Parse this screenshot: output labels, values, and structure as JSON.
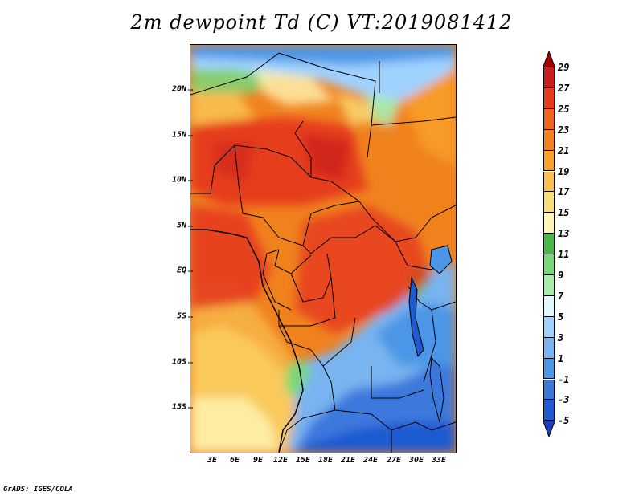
{
  "title": "2m dewpoint Td (C) VT:2019081412",
  "credit": "GrADS: IGES/COLA",
  "lat_labels": [
    "20N",
    "15N",
    "10N",
    "5N",
    "EQ",
    "5S",
    "10S",
    "15S"
  ],
  "lon_labels": [
    "3E",
    "6E",
    "9E",
    "12E",
    "15E",
    "18E",
    "21E",
    "24E",
    "27E",
    "30E",
    "33E"
  ],
  "colorbar": {
    "labels": [
      "29",
      "27",
      "25",
      "23",
      "21",
      "19",
      "17",
      "15",
      "13",
      "11",
      "9",
      "7",
      "5",
      "3",
      "1",
      "-1",
      "-3",
      "-5"
    ],
    "colors": [
      "#a00000",
      "#c81e1e",
      "#e63c1e",
      "#f0641e",
      "#f0821e",
      "#faa028",
      "#fac050",
      "#fadc78",
      "#fff5b4",
      "#48b848",
      "#78d878",
      "#a8eca8",
      "#e0f8ff",
      "#a0d2ff",
      "#78b4f0",
      "#4b96e6",
      "#3c78dc",
      "#1e5ad2",
      "#1e3cbe"
    ]
  },
  "map": {
    "region": "Central Africa",
    "variable": "2m dewpoint",
    "units": "C",
    "valid_time": "2019081412"
  }
}
